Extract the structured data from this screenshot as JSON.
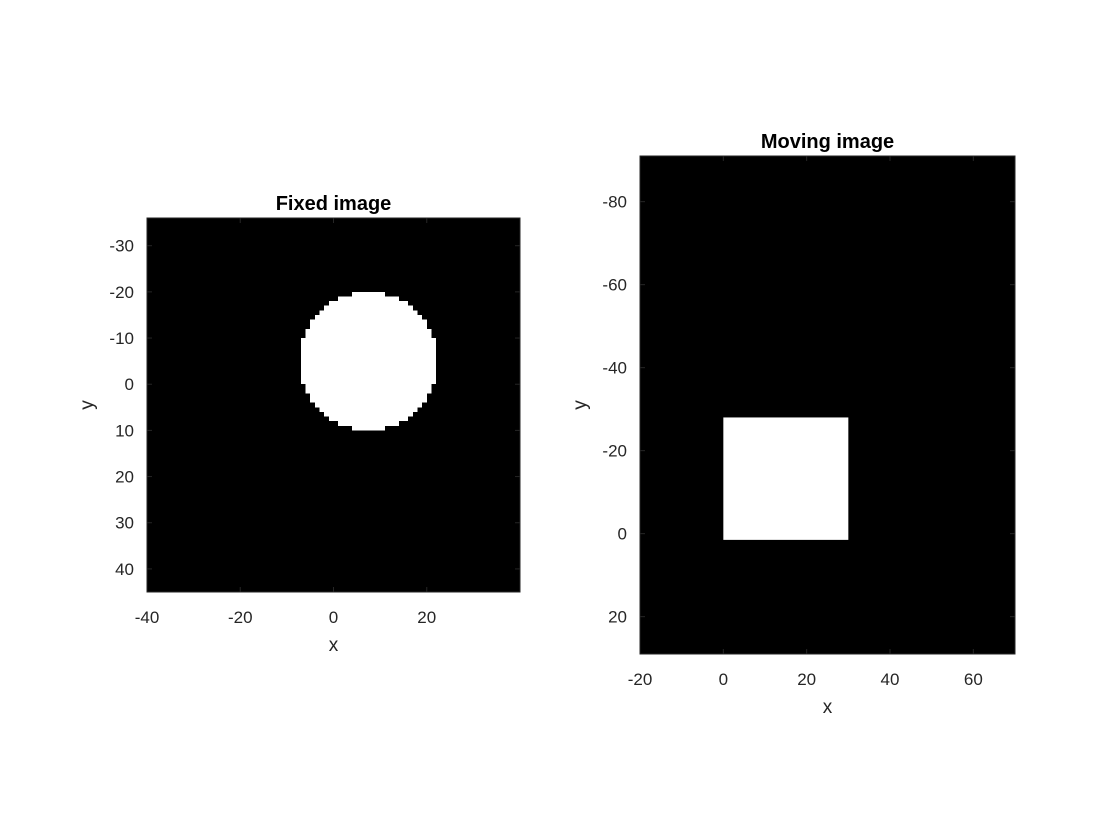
{
  "chart_data": [
    {
      "type": "image",
      "title": "Fixed image",
      "xlabel": "x",
      "ylabel": "y",
      "xlim": [
        -40,
        40
      ],
      "ylim": [
        -36,
        45
      ],
      "y_direction": "reversed",
      "xticks": [
        -40,
        -20,
        0,
        20
      ],
      "yticks": [
        -30,
        -20,
        -10,
        0,
        10,
        20,
        30,
        40
      ],
      "background_color": "#000000",
      "shape_color": "#ffffff",
      "grid": false,
      "shape": {
        "kind": "circle",
        "center": [
          7.5,
          -5
        ],
        "radius": 15
      }
    },
    {
      "type": "image",
      "title": "Moving image",
      "xlabel": "x",
      "ylabel": "y",
      "xlim": [
        -20,
        70
      ],
      "ylim": [
        -91,
        29
      ],
      "y_direction": "reversed",
      "xticks": [
        -20,
        0,
        20,
        40,
        60
      ],
      "yticks": [
        -80,
        -60,
        -40,
        -20,
        0,
        20
      ],
      "background_color": "#000000",
      "shape_color": "#ffffff",
      "grid": false,
      "shape": {
        "kind": "square",
        "x": [
          0,
          30
        ],
        "y": [
          -28,
          1.5
        ]
      }
    }
  ]
}
